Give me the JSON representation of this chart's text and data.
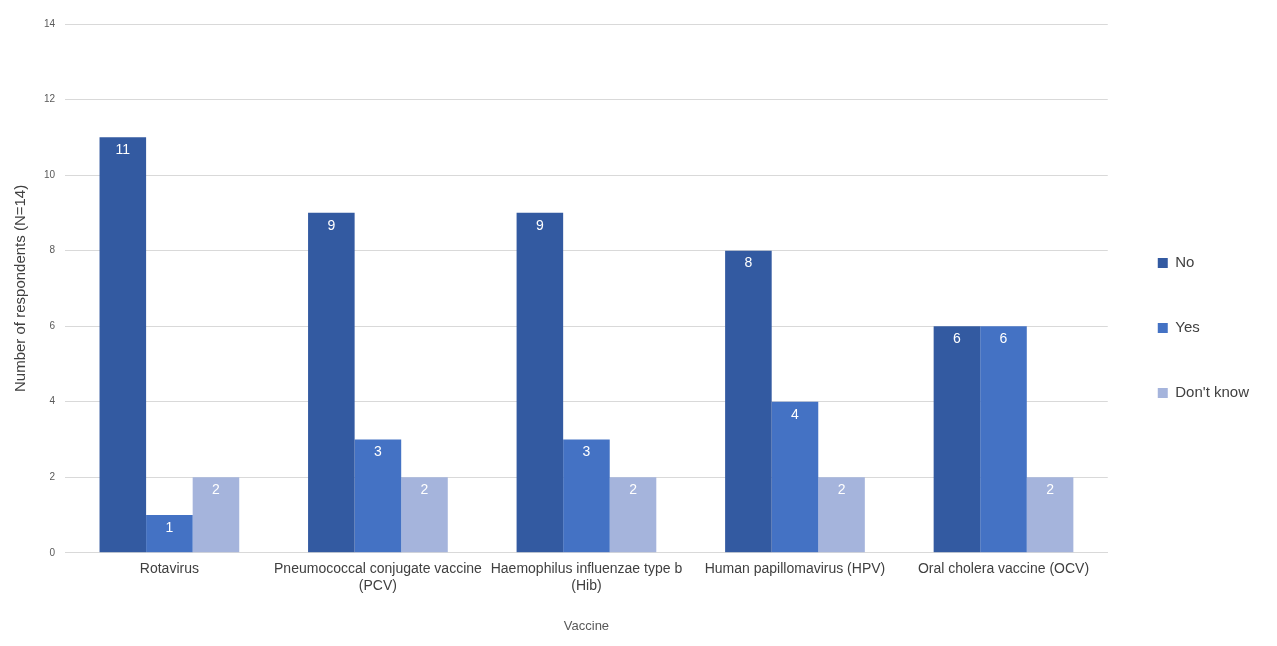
{
  "chart_data": {
    "type": "bar",
    "xlabel": "Vaccine",
    "ylabel": "Number of respondents (N=14)",
    "categories": [
      "Rotavirus",
      "Pneumococcal conjugate vaccine (PCV)",
      "Haemophilus influenzae type b (Hib)",
      "Human papillomavirus (HPV)",
      "Oral cholera vaccine (OCV)"
    ],
    "series": [
      {
        "name": "No",
        "color": "#335aa1",
        "values": [
          11,
          9,
          9,
          8,
          6
        ]
      },
      {
        "name": "Yes",
        "color": "#4472c4",
        "values": [
          1,
          3,
          3,
          4,
          6
        ]
      },
      {
        "name": "Don't know",
        "color": "#a5b4dc",
        "values": [
          2,
          2,
          2,
          2,
          2
        ]
      }
    ],
    "ylim": [
      0,
      14
    ],
    "yticks": [
      0,
      2,
      4,
      6,
      8,
      10,
      12,
      14
    ],
    "grid": "y",
    "legend": "right",
    "data_labels": true
  }
}
